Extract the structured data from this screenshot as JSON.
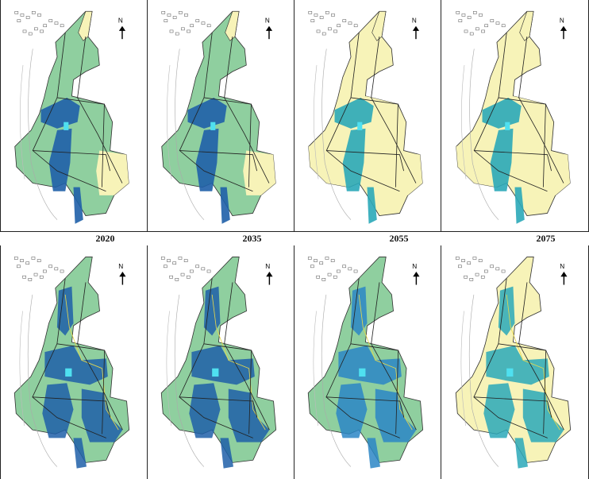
{
  "years": [
    "2020",
    "2035",
    "2055",
    "2075"
  ],
  "north_label": "N",
  "rows": [
    {
      "panels": [
        "top-2020",
        "top-2035",
        "top-2055",
        "top-2075"
      ]
    },
    {
      "panels": [
        "bottom-2020",
        "bottom-2035",
        "bottom-2055",
        "bottom-2075"
      ]
    }
  ],
  "colors": {
    "deep_blue": "#1f5fa8",
    "mid_blue": "#2b86c6",
    "teal": "#2aa8b8",
    "cyan": "#4fe0f0",
    "green": "#8fcf9f",
    "light_yellow": "#f7f3b8",
    "outline": "#333333"
  }
}
